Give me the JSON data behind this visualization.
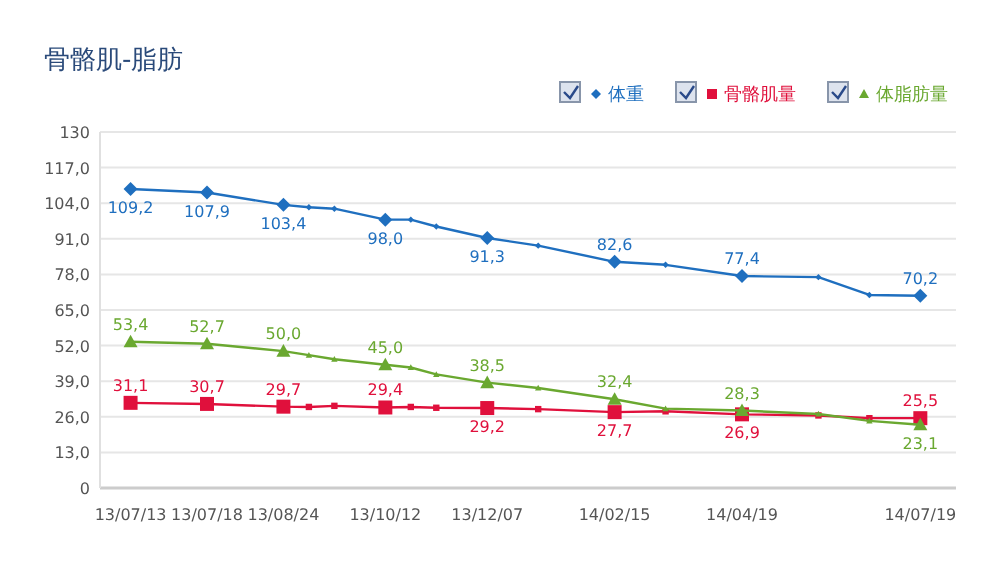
{
  "chart_data": {
    "type": "line",
    "title": "骨骼肌-脂肪",
    "legend": "top right",
    "grid": "y",
    "ylim": [
      0,
      130
    ],
    "yticks": [
      0,
      {
        "value": 13,
        "label": "13,0"
      },
      {
        "value": 26,
        "label": "26,0"
      },
      {
        "value": 39,
        "label": "39,0"
      },
      {
        "value": 52,
        "label": "52,0"
      },
      {
        "value": 65,
        "label": "65,0"
      },
      {
        "value": 78,
        "label": "78,0"
      },
      {
        "value": 91,
        "label": "91,0"
      },
      {
        "value": 104,
        "label": "104,0"
      },
      {
        "value": 117,
        "label": "117,0"
      },
      130
    ],
    "categories": [
      "13/07/13",
      null,
      null,
      "13/07/18",
      null,
      null,
      "13/08/24",
      null,
      null,
      null,
      "13/10/12",
      null,
      null,
      null,
      "13/12/07",
      null,
      null,
      null,
      null,
      "14/02/15",
      null,
      null,
      null,
      null,
      "14/04/19",
      null,
      null,
      null,
      null,
      null,
      null,
      "14/07/19"
    ],
    "series": [
      {
        "name": "体重",
        "color": "#1f6fbf",
        "marker": "diamond",
        "values": [
          109.2,
          null,
          null,
          107.9,
          null,
          null,
          103.4,
          102.5,
          102,
          null,
          98.0,
          98,
          95.5,
          null,
          91.3,
          null,
          88.5,
          null,
          null,
          82.6,
          null,
          81.5,
          null,
          null,
          77.4,
          null,
          null,
          77,
          null,
          70.5,
          null,
          70.2
        ],
        "value_labels": [
          "109,2",
          null,
          null,
          "107,9",
          null,
          null,
          "103,4",
          null,
          null,
          null,
          "98,0",
          null,
          null,
          null,
          "91,3",
          null,
          null,
          null,
          null,
          "82,6",
          null,
          null,
          null,
          null,
          "77,4",
          null,
          null,
          null,
          null,
          null,
          null,
          "70,2"
        ]
      },
      {
        "name": "骨骼肌量",
        "color": "#e0103c",
        "marker": "square",
        "values": [
          31.1,
          null,
          null,
          30.7,
          null,
          null,
          29.7,
          29.6,
          30,
          null,
          29.4,
          29.6,
          29.3,
          null,
          29.2,
          null,
          28.8,
          null,
          null,
          27.7,
          null,
          28,
          null,
          null,
          26.9,
          null,
          null,
          26.5,
          null,
          25.5,
          null,
          25.5
        ],
        "value_labels": [
          "31,1",
          null,
          null,
          "30,7",
          null,
          null,
          "29,7",
          null,
          null,
          null,
          "29,4",
          null,
          null,
          null,
          "29,2",
          null,
          null,
          null,
          null,
          "27,7",
          null,
          null,
          null,
          null,
          "26,9",
          null,
          null,
          null,
          null,
          null,
          null,
          "25,5"
        ]
      },
      {
        "name": "体脂肪量",
        "color": "#6aa830",
        "marker": "triangle",
        "values": [
          53.4,
          null,
          null,
          52.7,
          null,
          null,
          50.0,
          48.5,
          47,
          null,
          45.0,
          44,
          41.5,
          null,
          38.5,
          null,
          36.5,
          null,
          null,
          32.4,
          null,
          29,
          null,
          null,
          28.3,
          null,
          null,
          27,
          null,
          24.5,
          null,
          23.1
        ],
        "value_labels": [
          "53,4",
          null,
          null,
          "52,7",
          null,
          null,
          "50,0",
          null,
          null,
          null,
          "45,0",
          null,
          null,
          null,
          "38,5",
          null,
          null,
          null,
          null,
          "32,4",
          null,
          null,
          null,
          null,
          "28,3",
          null,
          null,
          null,
          null,
          null,
          null,
          "23,1"
        ]
      }
    ]
  }
}
